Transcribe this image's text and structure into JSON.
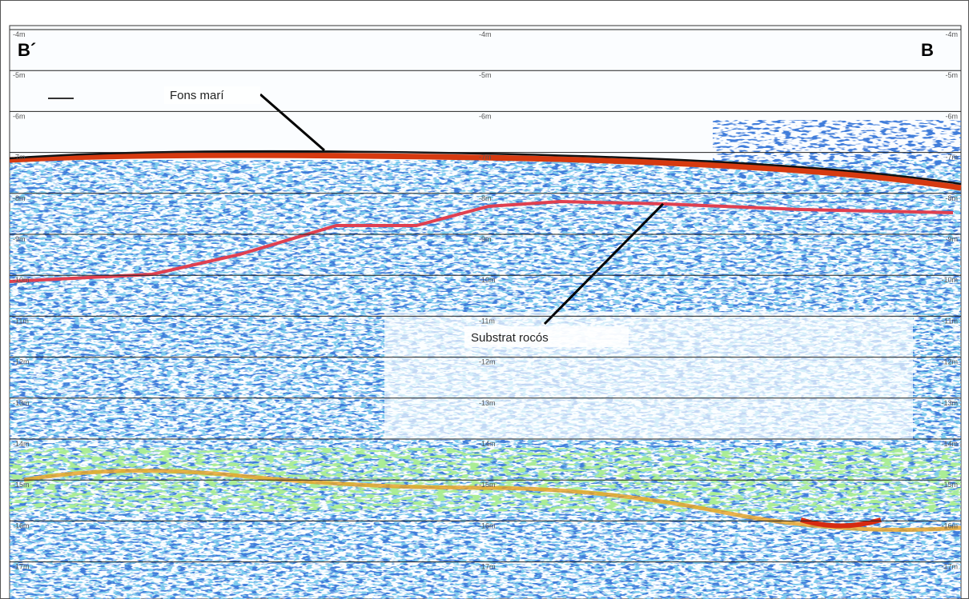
{
  "profile": {
    "start_label": "B´",
    "end_label": "B",
    "depth_labels": [
      "-4m",
      "-5m",
      "-6m",
      "-7m",
      "-8m",
      "-9m",
      "-10m",
      "-11m",
      "-12m",
      "-13m",
      "-14m",
      "-15m",
      "-16m",
      "-17m"
    ],
    "annotations": {
      "seabed": "Fons marí",
      "bedrock": "Substrat rocós"
    }
  }
}
